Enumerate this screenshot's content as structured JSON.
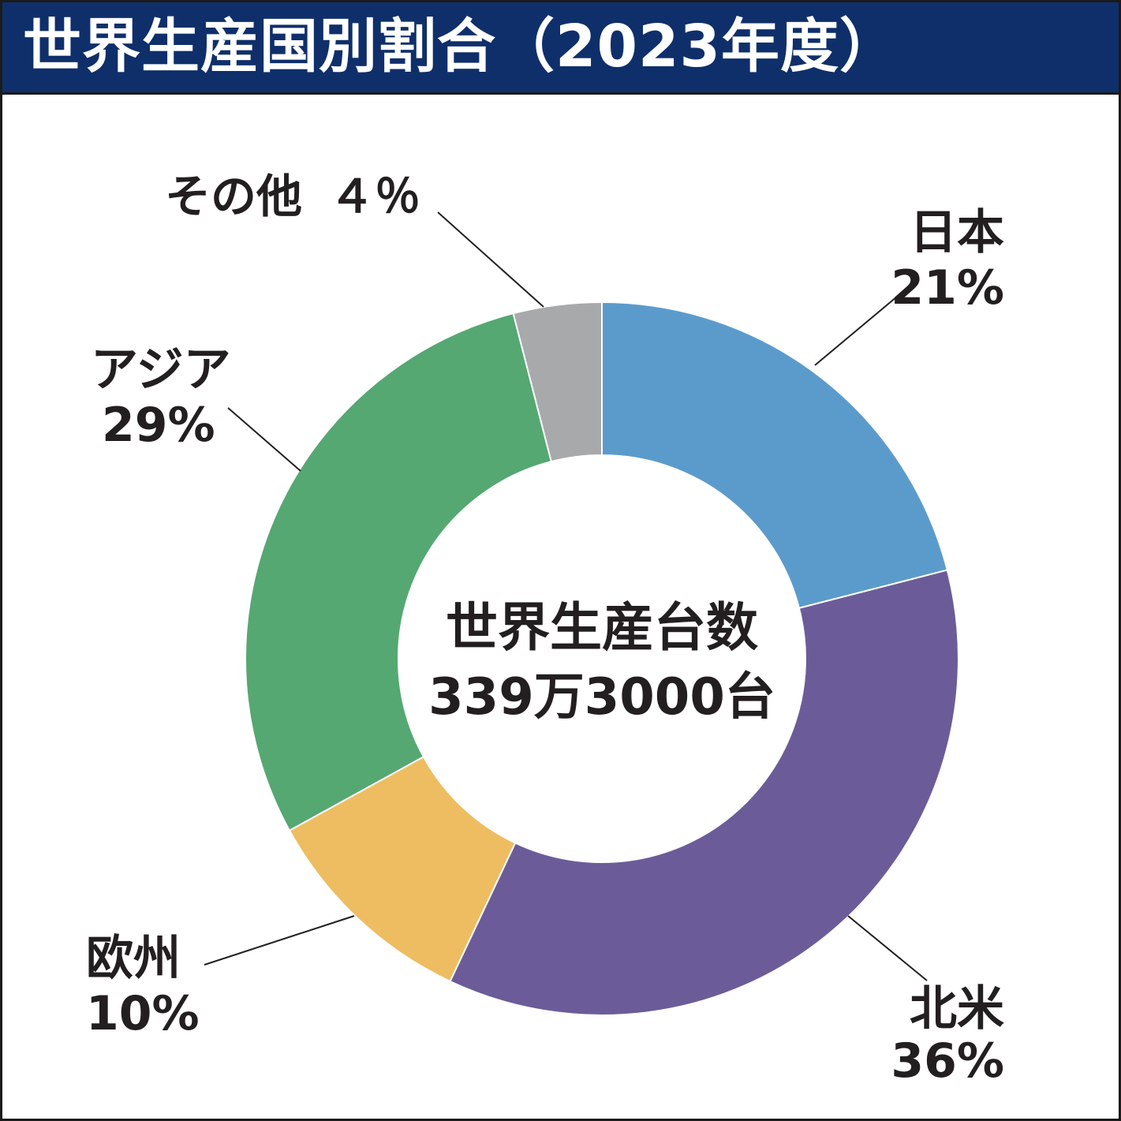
{
  "chart_data": {
    "type": "pie",
    "variant": "donut",
    "title": "世界生産国別割合（2023年度）",
    "center_title": "世界生産台数",
    "center_value": "339万3000台",
    "slices": [
      {
        "name": "日本",
        "value": 21,
        "label": "21%",
        "color": "#5b9bcc"
      },
      {
        "name": "北米",
        "value": 36,
        "label": "36%",
        "color": "#6b5c99"
      },
      {
        "name": "欧州",
        "value": 10,
        "label": "10%",
        "color": "#eebd62"
      },
      {
        "name": "アジア",
        "value": 29,
        "label": "29%",
        "color": "#55a872"
      },
      {
        "name": "その他",
        "value": 4,
        "label": "４％",
        "color": "#a8a9ab"
      }
    ],
    "start_angle": "12 o'clock",
    "direction": "clockwise"
  }
}
